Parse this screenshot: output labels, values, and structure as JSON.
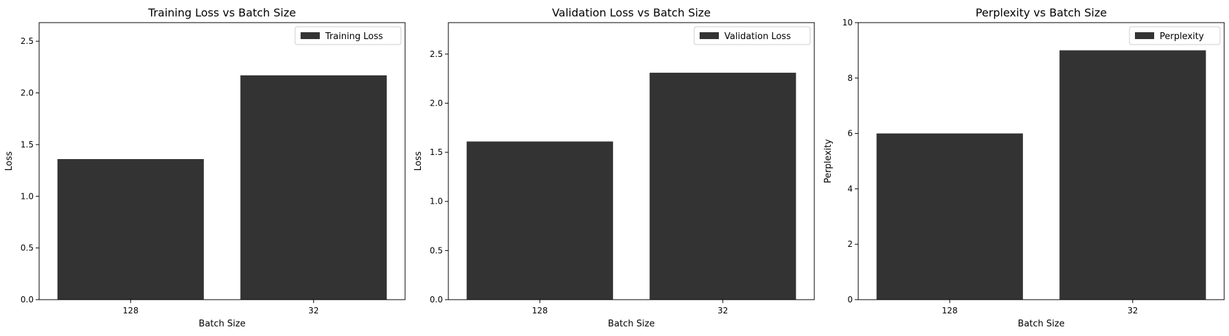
{
  "colors": {
    "bar": "#333333",
    "background": "#ffffff",
    "axis": "#000000"
  },
  "chart_data": [
    {
      "type": "bar",
      "title": "Training Loss vs Batch Size",
      "xlabel": "Batch Size",
      "ylabel": "Loss",
      "categories": [
        "128",
        "32"
      ],
      "series": [
        {
          "name": "Training Loss",
          "values": [
            1.36,
            2.17
          ]
        }
      ],
      "ylim": [
        0,
        2.68
      ],
      "yticks": [
        0.0,
        0.5,
        1.0,
        1.5,
        2.0,
        2.5
      ],
      "ytick_labels": [
        "0.0",
        "0.5",
        "1.0",
        "1.5",
        "2.0",
        "2.5"
      ],
      "legend": "top-right",
      "grid": false
    },
    {
      "type": "bar",
      "title": "Validation Loss vs Batch Size",
      "xlabel": "Batch Size",
      "ylabel": "Loss",
      "categories": [
        "128",
        "32"
      ],
      "series": [
        {
          "name": "Validation Loss",
          "values": [
            1.61,
            2.31
          ]
        }
      ],
      "ylim": [
        0,
        2.82
      ],
      "yticks": [
        0.0,
        0.5,
        1.0,
        1.5,
        2.0,
        2.5
      ],
      "ytick_labels": [
        "0.0",
        "0.5",
        "1.0",
        "1.5",
        "2.0",
        "2.5"
      ],
      "legend": "top-right",
      "grid": false
    },
    {
      "type": "bar",
      "title": "Perplexity vs Batch Size",
      "xlabel": "Batch Size",
      "ylabel": "Perplexity",
      "categories": [
        "128",
        "32"
      ],
      "series": [
        {
          "name": "Perplexity",
          "values": [
            6.0,
            9.0
          ]
        }
      ],
      "ylim": [
        0,
        10
      ],
      "yticks": [
        0,
        2,
        4,
        6,
        8,
        10
      ],
      "ytick_labels": [
        "0",
        "2",
        "4",
        "6",
        "8",
        "10"
      ],
      "legend": "top-right",
      "grid": false
    }
  ]
}
